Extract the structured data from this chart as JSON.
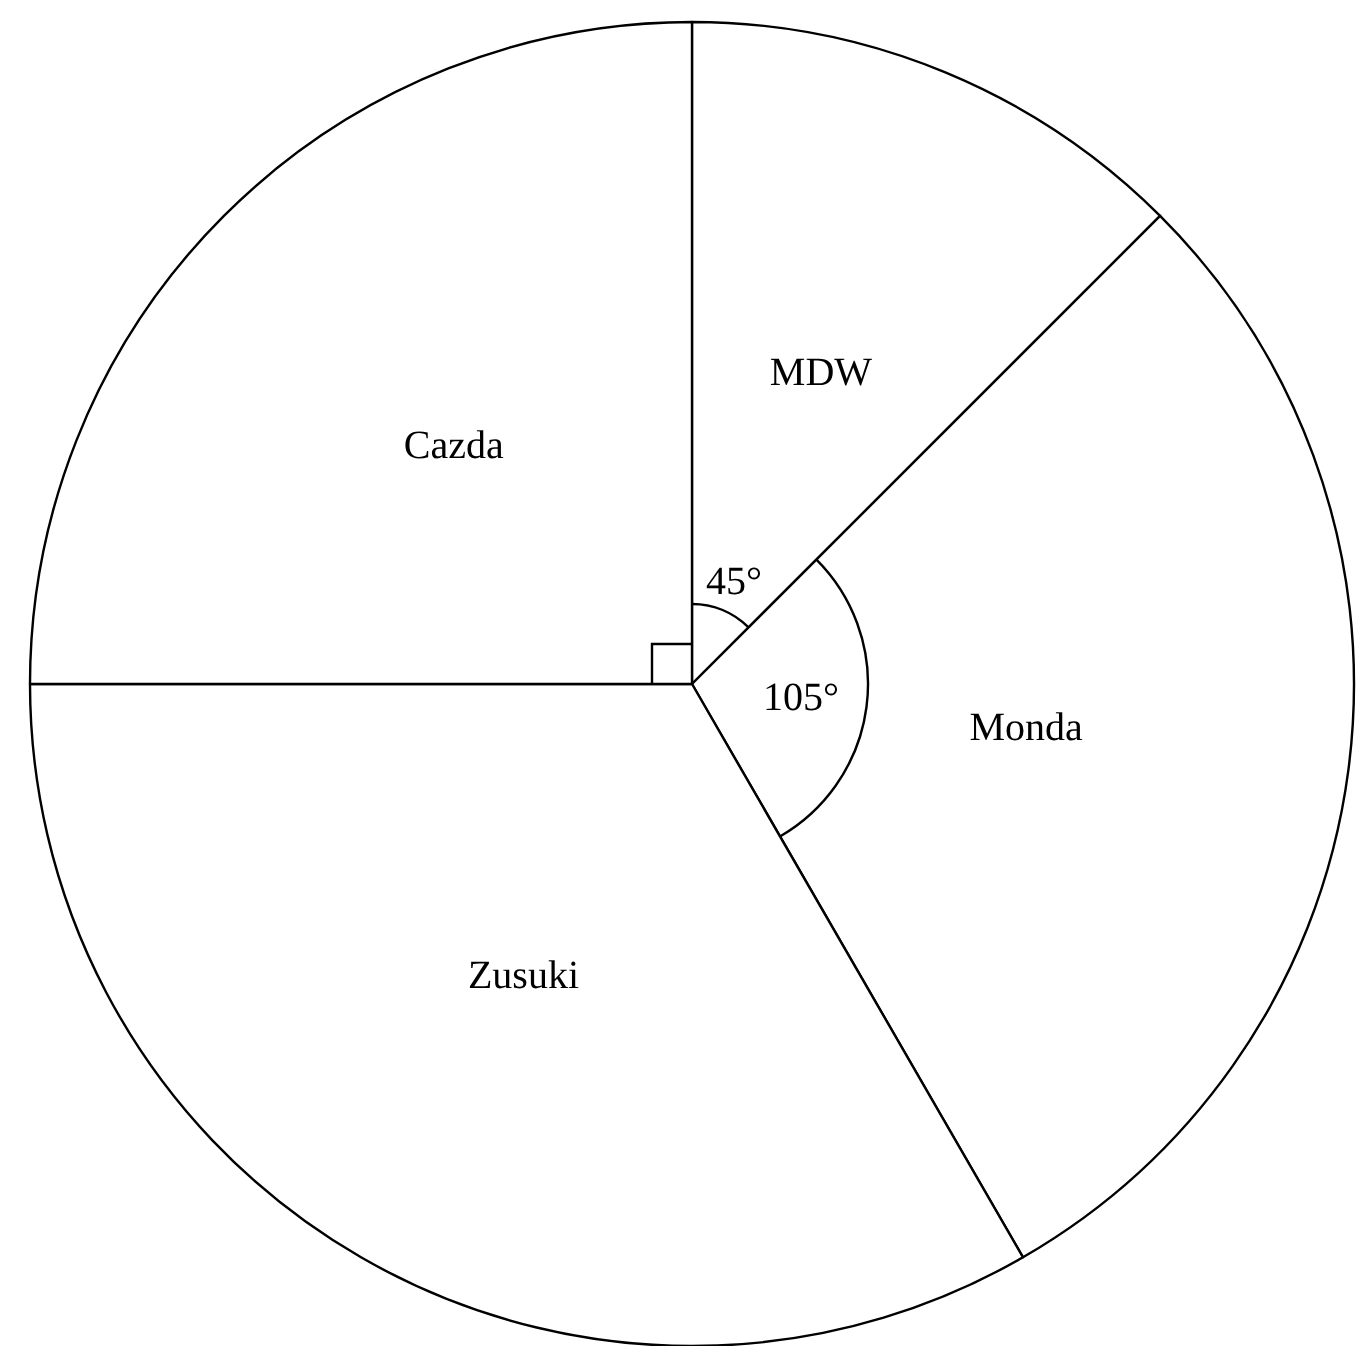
{
  "chart_data": {
    "type": "pie",
    "categories": [
      "MDW",
      "Monda",
      "Zusuki",
      "Cazda"
    ],
    "values": [
      45,
      105,
      120,
      90
    ],
    "colors": [
      "#ffffff",
      "#ffffff",
      "#ffffff",
      "#ffffff"
    ],
    "value_labels": [
      "45°",
      "105°",
      null,
      null
    ]
  }
}
